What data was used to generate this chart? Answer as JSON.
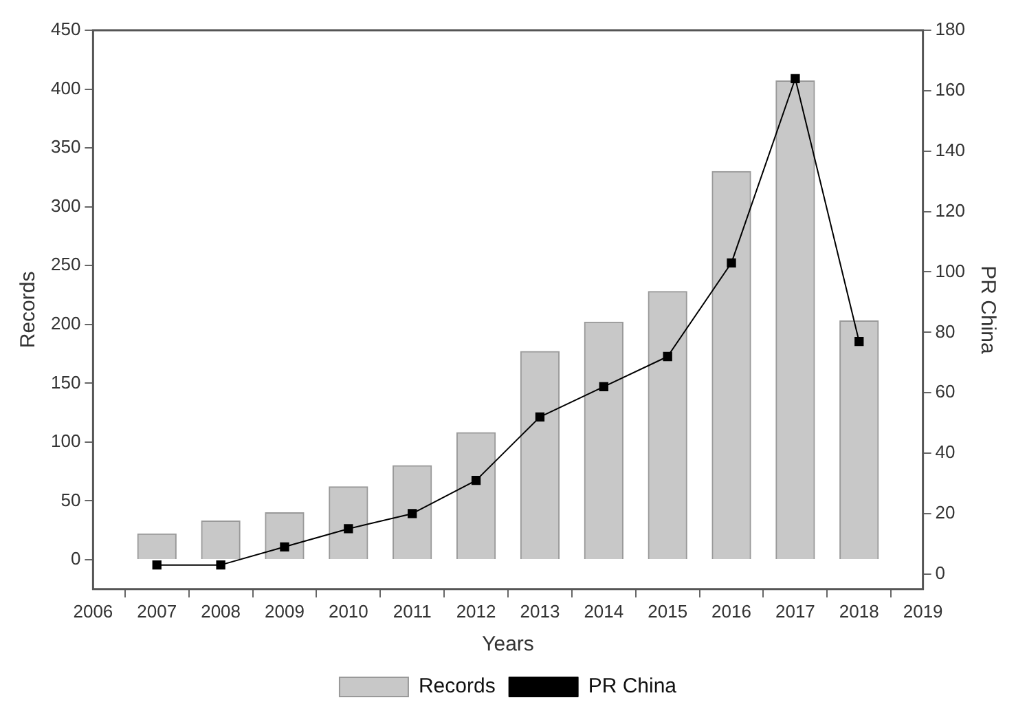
{
  "chart_data": {
    "type": "bar",
    "xlabel": "Years",
    "ylabel": "Records",
    "y2label": "PR China",
    "x": [
      2007,
      2008,
      2009,
      2010,
      2011,
      2012,
      2013,
      2014,
      2015,
      2016,
      2017,
      2018
    ],
    "series": [
      {
        "name": "Records",
        "color": "#c8c8c8",
        "values": [
          22,
          33,
          40,
          62,
          80,
          108,
          177,
          202,
          228,
          330,
          407,
          203
        ]
      },
      {
        "name": "PR China",
        "type": "line",
        "axis": "y2",
        "color": "#000000",
        "marker": "square",
        "values": [
          3,
          3,
          9,
          15,
          20,
          31,
          52,
          62,
          72,
          103,
          164,
          77
        ]
      }
    ],
    "xlim": [
      2006,
      2019
    ],
    "xticks": [
      2006,
      2007,
      2008,
      2009,
      2010,
      2011,
      2012,
      2013,
      2014,
      2015,
      2016,
      2017,
      2018,
      2019
    ],
    "ylim": [
      -25,
      450
    ],
    "yticks": [
      0,
      50,
      100,
      150,
      200,
      250,
      300,
      350,
      400,
      450
    ],
    "y2lim": [
      -5,
      180
    ],
    "y2ticks": [
      0,
      20,
      40,
      60,
      80,
      100,
      120,
      140,
      160,
      180
    ],
    "grid": false,
    "legend": "bottom"
  }
}
